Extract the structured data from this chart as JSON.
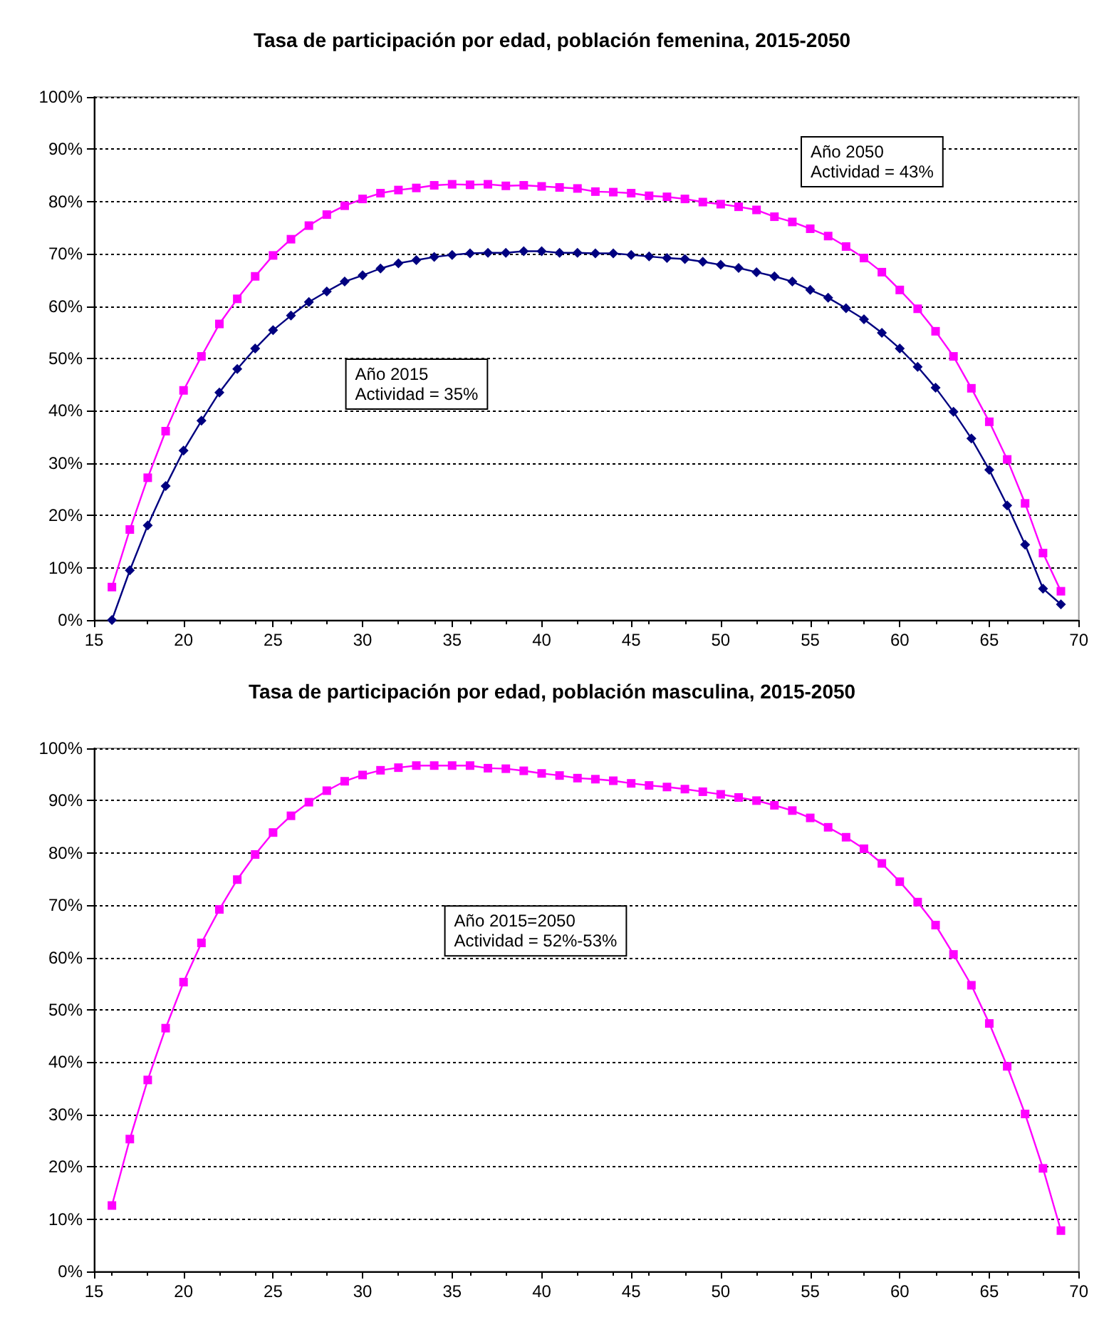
{
  "chart_data": [
    {
      "type": "line",
      "title": "Tasa de participación por edad, población femenina, 2015-2050",
      "x": [
        16,
        17,
        18,
        19,
        20,
        21,
        22,
        23,
        24,
        25,
        26,
        27,
        28,
        29,
        30,
        31,
        32,
        33,
        34,
        35,
        36,
        37,
        38,
        39,
        40,
        41,
        42,
        43,
        44,
        45,
        46,
        47,
        48,
        49,
        50,
        51,
        52,
        53,
        54,
        55,
        56,
        57,
        58,
        59,
        60,
        61,
        62,
        63,
        64,
        65,
        66,
        67,
        68,
        69
      ],
      "series": [
        {
          "color": "#000080",
          "marker": "diamond",
          "values": [
            0,
            9.5,
            18.1,
            25.6,
            32.4,
            38.1,
            43.5,
            48.0,
            51.9,
            55.4,
            58.2,
            60.8,
            62.8,
            64.7,
            65.9,
            67.2,
            68.2,
            68.8,
            69.4,
            69.8,
            70.1,
            70.2,
            70.2,
            70.5,
            70.5,
            70.2,
            70.2,
            70.1,
            70.1,
            69.8,
            69.5,
            69.2,
            69.0,
            68.5,
            67.9,
            67.3,
            66.5,
            65.7,
            64.7,
            63.1,
            61.6,
            59.6,
            57.5,
            54.9,
            51.9,
            48.4,
            44.4,
            39.8,
            34.7,
            28.7,
            21.9,
            14.4,
            6.0,
            3.0
          ]
        },
        {
          "color": "#ff00ff",
          "marker": "square",
          "values": [
            6.3,
            17.3,
            27.2,
            36.1,
            43.9,
            50.4,
            56.6,
            61.4,
            65.7,
            69.7,
            72.8,
            75.4,
            77.5,
            79.2,
            80.5,
            81.6,
            82.2,
            82.6,
            83.1,
            83.3,
            83.2,
            83.3,
            83.0,
            83.1,
            82.9,
            82.7,
            82.5,
            81.9,
            81.8,
            81.6,
            81.1,
            80.9,
            80.5,
            79.9,
            79.5,
            79.0,
            78.4,
            77.1,
            76.1,
            74.8,
            73.4,
            71.4,
            69.2,
            66.5,
            63.1,
            59.5,
            55.2,
            50.4,
            44.3,
            37.9,
            30.7,
            22.3,
            12.8,
            5.5
          ]
        }
      ],
      "annotations": [
        "Año 2015\nActividad = 35%",
        "Año 2050\nActividad = 43%"
      ],
      "xlim": [
        15,
        70
      ],
      "xticks": [
        15,
        20,
        25,
        30,
        35,
        40,
        45,
        50,
        55,
        60,
        65,
        70
      ],
      "ylim": [
        0,
        100
      ],
      "yticks": [
        {
          "value": 0,
          "label": "0%"
        },
        {
          "value": 10,
          "label": "10%"
        },
        {
          "value": 20,
          "label": "20%"
        },
        {
          "value": 30,
          "label": "30%"
        },
        {
          "value": 40,
          "label": "40%"
        },
        {
          "value": 50,
          "label": "50%"
        },
        {
          "value": 60,
          "label": "60%"
        },
        {
          "value": 70,
          "label": "70%"
        },
        {
          "value": 80,
          "label": "80%"
        },
        {
          "value": 90,
          "label": "90%"
        },
        {
          "value": 100,
          "label": "100%"
        }
      ],
      "grid": "y"
    },
    {
      "type": "line",
      "title": "Tasa de participación por edad, población masculina, 2015-2050",
      "x": [
        16,
        17,
        18,
        19,
        20,
        21,
        22,
        23,
        24,
        25,
        26,
        27,
        28,
        29,
        30,
        31,
        32,
        33,
        34,
        35,
        36,
        37,
        38,
        39,
        40,
        41,
        42,
        43,
        44,
        45,
        46,
        47,
        48,
        49,
        50,
        51,
        52,
        53,
        54,
        55,
        56,
        57,
        58,
        59,
        60,
        61,
        62,
        63,
        64,
        65,
        66,
        67,
        68,
        69
      ],
      "series": [
        {
          "color": "#ff00ff",
          "marker": "square",
          "values": [
            12.6,
            25.3,
            36.6,
            46.5,
            55.3,
            62.8,
            69.2,
            74.9,
            79.7,
            83.9,
            87.1,
            89.7,
            91.9,
            93.7,
            94.9,
            95.8,
            96.3,
            96.7,
            96.7,
            96.7,
            96.7,
            96.2,
            96.1,
            95.7,
            95.2,
            94.8,
            94.3,
            94.1,
            93.8,
            93.3,
            92.9,
            92.6,
            92.2,
            91.7,
            91.2,
            90.6,
            90.0,
            89.1,
            88.1,
            86.7,
            84.9,
            83.0,
            80.8,
            78.0,
            74.5,
            70.6,
            66.2,
            60.6,
            54.7,
            47.4,
            39.2,
            30.1,
            19.7,
            7.8
          ]
        }
      ],
      "annotations": [
        "Año 2015=2050\nActividad = 52%-53%"
      ],
      "xlim": [
        15,
        70
      ],
      "xticks": [
        15,
        20,
        25,
        30,
        35,
        40,
        45,
        50,
        55,
        60,
        65,
        70
      ],
      "ylim": [
        0,
        100
      ],
      "yticks": [
        {
          "value": 0,
          "label": "0%"
        },
        {
          "value": 10,
          "label": "10%"
        },
        {
          "value": 20,
          "label": "20%"
        },
        {
          "value": 30,
          "label": "30%"
        },
        {
          "value": 40,
          "label": "40%"
        },
        {
          "value": 50,
          "label": "50%"
        },
        {
          "value": 60,
          "label": "60%"
        },
        {
          "value": 70,
          "label": "70%"
        },
        {
          "value": 80,
          "label": "80%"
        },
        {
          "value": 90,
          "label": "90%"
        },
        {
          "value": 100,
          "label": "100%"
        }
      ],
      "grid": "y"
    }
  ]
}
